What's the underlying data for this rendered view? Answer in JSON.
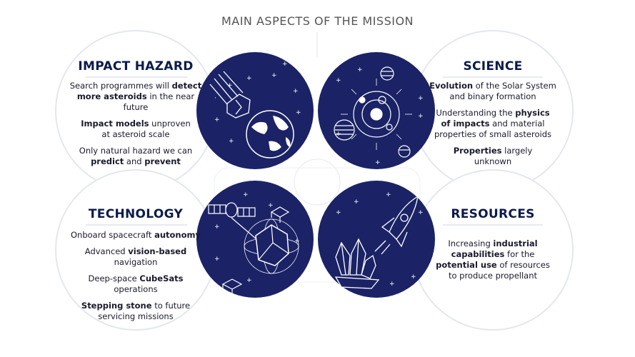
{
  "title": "MAIN ASPECTS OF THE MISSION",
  "colors": {
    "navy": "#1b2366",
    "star": "#ffffff",
    "line": "#cfd6e6"
  },
  "sections": [
    {
      "id": "impact-hazard",
      "heading": "IMPACT HAZARD",
      "lines": [
        [
          "Search programmes will ",
          "detect",
          ""
        ],
        [
          "",
          "more asteroids",
          " in the near future"
        ],
        [
          "",
          "Impact models",
          " unproven"
        ],
        [
          "at asteroid scale",
          "",
          ""
        ],
        [
          "Only natural hazard we can",
          "",
          ""
        ],
        [
          "",
          "predict",
          " and "
        ],
        [
          "",
          "prevent",
          ""
        ]
      ]
    },
    {
      "id": "science",
      "heading": "SCIENCE"
    },
    {
      "id": "technology",
      "heading": "TECHNOLOGY"
    },
    {
      "id": "resources",
      "heading": "RESOURCES"
    }
  ],
  "impact": {
    "p1a": "Search programmes will ",
    "p1b": "detect",
    "p1c": "more asteroids",
    "p1d": " in the near future",
    "p2a": "Impact models",
    "p2b": " unproven",
    "p2c": "at asteroid scale",
    "p3a": "Only natural hazard we can",
    "p3b": "predict",
    "p3c": " and ",
    "p3d": "prevent"
  },
  "science": {
    "p1a": "Evolution",
    "p1b": " of the Solar System",
    "p1c": "and binary formation",
    "p2a": "Understanding the ",
    "p2b": "physics",
    "p2c": "of impacts",
    "p2d": " and material",
    "p2e": "properties of small asteroids",
    "p3a": "Properties",
    "p3b": " largely",
    "p3c": "unknown"
  },
  "technology": {
    "p1a": "Onboard spacecraft ",
    "p1b": "autonomy",
    "p2a": "Advanced ",
    "p2b": "vision-based",
    "p2c": " navigation",
    "p3a": "Deep-space ",
    "p3b": "CubeSats",
    "p3c": " operations",
    "p4a": "Stepping stone",
    "p4b": " to future",
    "p4c": "servicing missions"
  },
  "resources": {
    "p1a": "Increasing ",
    "p1b": "industrial",
    "p1c": "capabilities",
    "p1d": " for the",
    "p2a": "potential use",
    "p2b": " of resources",
    "p2c": "to produce propellant"
  },
  "icons": [
    "asteroid-icon",
    "earth-icon",
    "solar-system-icon",
    "spacecraft-icon",
    "cubesat-icon",
    "rocket-icon",
    "crystal-icon"
  ]
}
